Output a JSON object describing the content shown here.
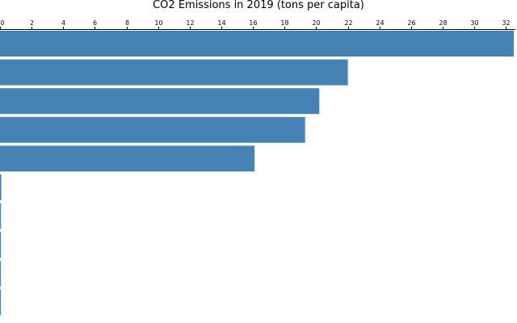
{
  "chart_data": {
    "type": "bar",
    "orientation": "horizontal",
    "title": "CO2 Emissions in 2019 (tons per capita)",
    "xlabel": "",
    "ylabel": "",
    "xlim": [
      0,
      32.6
    ],
    "x_ticks": [
      0,
      2,
      4,
      6,
      8,
      10,
      12,
      14,
      16,
      18,
      20,
      22,
      24,
      26,
      28,
      30,
      32
    ],
    "x_axis_position": "top",
    "grid": false,
    "bar_color": "#4682b4",
    "values": [
      32.5,
      22.0,
      20.2,
      19.3,
      16.1,
      0.08,
      0.06,
      0.06,
      0.05,
      0.05
    ]
  }
}
